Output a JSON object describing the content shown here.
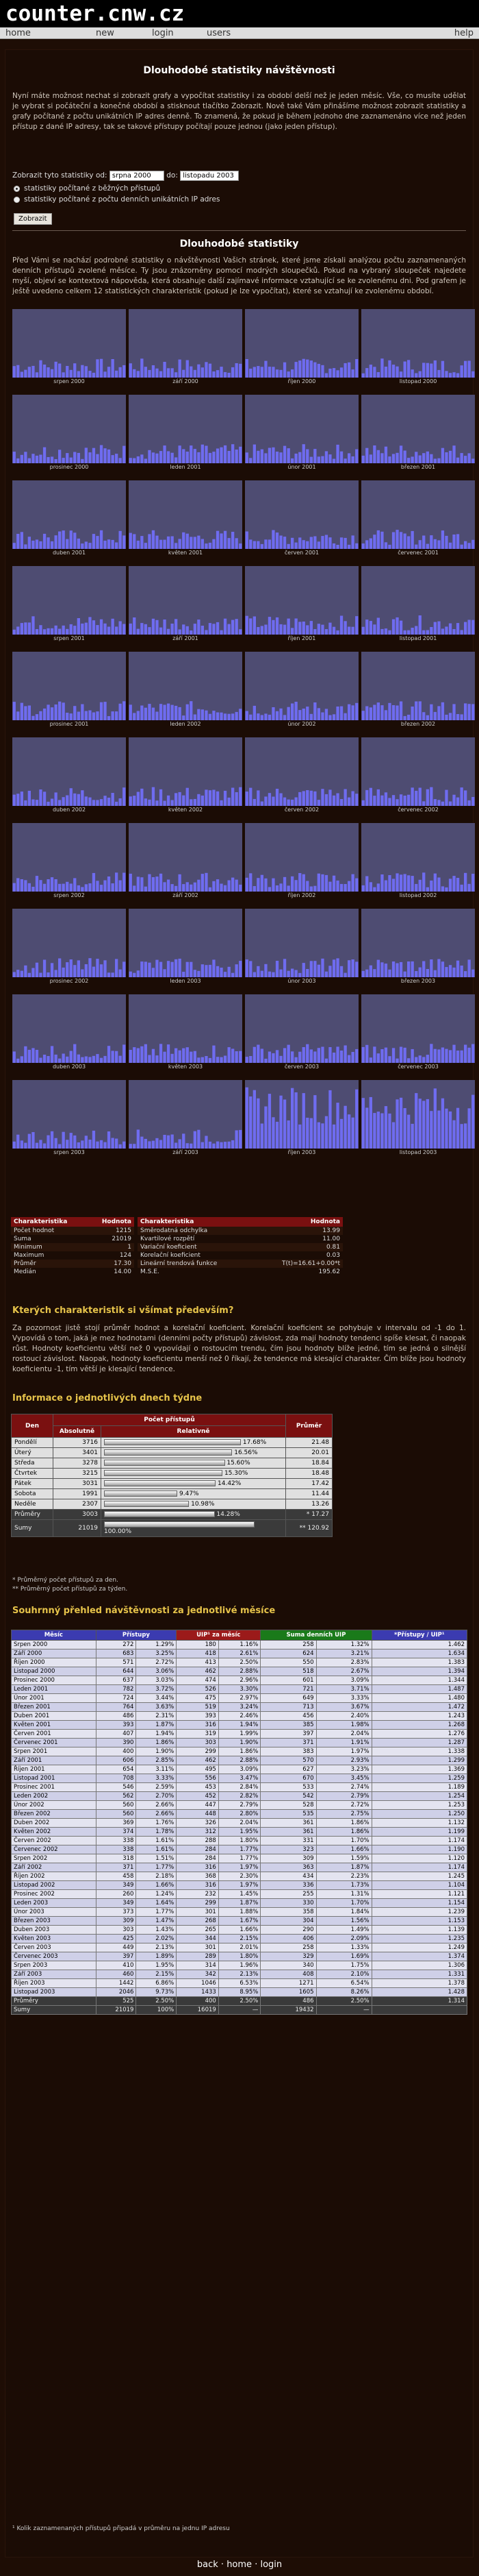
{
  "header": {
    "logo": "counter.cnw.cz"
  },
  "nav": {
    "home": "home",
    "new": "new",
    "login": "login",
    "users": "users",
    "help": "help"
  },
  "page": {
    "title": "Dlouhodobé statistiky návštěvnosti",
    "intro": "Nyní máte možnost nechat si zobrazit grafy a vypočítat statistiky i za období delší než je jeden měsíc. Vše, co musíte udělat je vybrat si počáteční a konečné období a stisknout tlačítko Zobrazit. Nově také Vám přinášíme možnost zobrazit statistiky a grafy počítané z počtu unikátních IP adres denně. To znamená, že pokud je během jednoho dne zaznamenáno více než jeden přístup z dané IP adresy, tak se takové přístupy počítají pouze jednou (jako jeden přístup).",
    "form_label_from": "Zobrazit tyto statistiky od:",
    "from_value": "srpna 2000",
    "form_label_to": "do:",
    "to_value": "listopadu 2003",
    "radio1": "statistiky počítané z běžných přístupů",
    "radio2": "statistiky počítané z počtu denních unikátních IP adres",
    "submit": "Zobrazit",
    "sub_title": "Dlouhodobé statistiky",
    "sub_intro": "Před Vámi se nachází podrobné statistiky o návštěvnosti Vašich stránek, které jsme získali analýzou počtu zaznamenaných denních přístupů zvolené měsíce. Ty jsou znázorněny pomocí modrých sloupečků. Pokud na vybraný sloupeček najedete myší, objeví se kontextová nápověda, která obsahuje další zajímavé informace vztahující se ke zvolenému dni. Pod grafem je ještě uvedeno celkem 12 statistických charakteristik (pokud je lze vypočítat), které se vztahují ke zvolenému období.",
    "sub_heading": "počítané z počtu denních přístupů pro ID: [puschpull]"
  },
  "charts": [
    {
      "label": "srpen 2000"
    },
    {
      "label": "září 2000"
    },
    {
      "label": "říjen 2000"
    },
    {
      "label": "listopad 2000"
    },
    {
      "label": "prosinec 2000"
    },
    {
      "label": "leden 2001"
    },
    {
      "label": "únor 2001"
    },
    {
      "label": "březen 2001"
    },
    {
      "label": "duben 2001"
    },
    {
      "label": "květen 2001"
    },
    {
      "label": "červen 2001"
    },
    {
      "label": "červenec 2001"
    },
    {
      "label": "srpen 2001"
    },
    {
      "label": "září 2001"
    },
    {
      "label": "říjen 2001"
    },
    {
      "label": "listopad 2001"
    },
    {
      "label": "prosinec 2001"
    },
    {
      "label": "leden 2002"
    },
    {
      "label": "únor 2002"
    },
    {
      "label": "březen 2002"
    },
    {
      "label": "duben 2002"
    },
    {
      "label": "květen 2002"
    },
    {
      "label": "červen 2002"
    },
    {
      "label": "červenec 2002"
    },
    {
      "label": "srpen 2002"
    },
    {
      "label": "září 2002"
    },
    {
      "label": "říjen 2002"
    },
    {
      "label": "listopad 2002"
    },
    {
      "label": "prosinec 2002"
    },
    {
      "label": "leden 2003"
    },
    {
      "label": "únor 2003"
    },
    {
      "label": "březen 2003"
    },
    {
      "label": "duben 2003"
    },
    {
      "label": "květen 2003"
    },
    {
      "label": "červen 2003"
    },
    {
      "label": "červenec 2003"
    },
    {
      "label": "srpen 2003"
    },
    {
      "label": "září 2003"
    },
    {
      "label": "říjen 2003"
    },
    {
      "label": "listopad 2003"
    }
  ],
  "stats": {
    "head_left": [
      "Charakteristika",
      "Hodnota"
    ],
    "head_right": [
      "Charakteristika",
      "Hodnota"
    ],
    "left": [
      [
        "Počet hodnot",
        "1215"
      ],
      [
        "Suma",
        "21019"
      ],
      [
        "Minimum",
        "1"
      ],
      [
        "Maximum",
        "124"
      ],
      [
        "Průměr",
        "17.30"
      ],
      [
        "Medián",
        "14.00"
      ]
    ],
    "right": [
      [
        "Směrodatná odchylka",
        "13.99"
      ],
      [
        "Kvartilové rozpětí",
        "11.00"
      ],
      [
        "Variační koeficient",
        "0.81"
      ],
      [
        "Korelační koeficient",
        "0.03"
      ],
      [
        "Lineární trendová funkce",
        "T(t)=16.61+0.00*t"
      ],
      [
        "M.S.E.",
        "195.62"
      ]
    ]
  },
  "notice": {
    "title": "Kterých charakteristik si všímat především?",
    "text": "Za pozornost jistě stojí průměr hodnot a korelační koeficient. Korelační koeficient se pohybuje v intervalu od -1 do 1. Vypovídá o tom, jaká je mez hodnotami (denními počty přístupů) závislost, zda mají hodnoty tendenci spíše klesat, či naopak růst. Hodnoty koeficientu větší než 0 vypovídají o rostoucím trendu, čím jsou hodnoty blíže jedné, tím se jedná o silnější rostoucí závislost. Naopak, hodnoty koeficientu menší než 0 říkají, že tendence má klesající charakter. Čím blíže jsou hodnoty koeficientu -1, tím větší je klesající tendence."
  },
  "days": {
    "title": "Informace o jednotlivých dnech týdne",
    "h_den": "Den",
    "h_pristupu": "Počet přístupů",
    "h_abs": "Absolutně",
    "h_rel": "Relativně",
    "h_avg": "Průměr",
    "rows": [
      [
        "Pondělí",
        "3716",
        "17.68%",
        "21.48"
      ],
      [
        "Úterý",
        "3401",
        "16.56%",
        "20.01"
      ],
      [
        "Středa",
        "3278",
        "15.60%",
        "18.84"
      ],
      [
        "Čtvrtek",
        "3215",
        "15.30%",
        "18.48"
      ],
      [
        "Pátek",
        "3031",
        "14.42%",
        "17.42"
      ],
      [
        "Sobota",
        "1991",
        "9.47%",
        "11.44"
      ],
      [
        "Neděle",
        "2307",
        "10.98%",
        "13.26"
      ],
      [
        "Průměry",
        "3003",
        "14.28%",
        "* 17.27"
      ],
      [
        "Sumy",
        "21019",
        "100.00%",
        "** 120.92"
      ]
    ],
    "pct": [
      17.68,
      16.56,
      15.6,
      15.3,
      14.42,
      9.47,
      10.98,
      14.28,
      100
    ],
    "fn1": "* Průměrný počet přístupů za den.",
    "fn2": "** Průměrný počet přístupů za týden."
  },
  "months": {
    "title": "Souhrnný přehled návštěvnosti za jednotlivé měsíce",
    "headers": [
      "Měsíc",
      "Přístupy",
      "UIP¹ za měsíc",
      "Suma denních UIP",
      "*Přístupy / UIP¹"
    ],
    "rows": [
      [
        "Srpen 2000",
        "272",
        "1.29%",
        "180",
        "1.16%",
        "258",
        "1.32%",
        "1.462"
      ],
      [
        "Září 2000",
        "683",
        "3.25%",
        "418",
        "2.61%",
        "624",
        "3.21%",
        "1.634"
      ],
      [
        "Říjen 2000",
        "571",
        "2.72%",
        "413",
        "2.50%",
        "550",
        "2.83%",
        "1.383"
      ],
      [
        "Listopad 2000",
        "644",
        "3.06%",
        "462",
        "2.88%",
        "518",
        "2.67%",
        "1.394"
      ],
      [
        "Prosinec 2000",
        "637",
        "3.03%",
        "474",
        "2.96%",
        "601",
        "3.09%",
        "1.344"
      ],
      [
        "Leden 2001",
        "782",
        "3.72%",
        "526",
        "3.30%",
        "721",
        "3.71%",
        "1.487"
      ],
      [
        "Únor 2001",
        "724",
        "3.44%",
        "475",
        "2.97%",
        "649",
        "3.33%",
        "1.480"
      ],
      [
        "Březen 2001",
        "764",
        "3.63%",
        "519",
        "3.24%",
        "713",
        "3.67%",
        "1.472"
      ],
      [
        "Duben 2001",
        "486",
        "2.31%",
        "393",
        "2.46%",
        "456",
        "2.40%",
        "1.243"
      ],
      [
        "Květen 2001",
        "393",
        "1.87%",
        "316",
        "1.94%",
        "385",
        "1.98%",
        "1.268"
      ],
      [
        "Červen 2001",
        "407",
        "1.94%",
        "319",
        "1.99%",
        "397",
        "2.04%",
        "1.276"
      ],
      [
        "Červenec 2001",
        "390",
        "1.86%",
        "303",
        "1.90%",
        "371",
        "1.91%",
        "1.287"
      ],
      [
        "Srpen 2001",
        "400",
        "1.90%",
        "299",
        "1.86%",
        "383",
        "1.97%",
        "1.338"
      ],
      [
        "Září 2001",
        "606",
        "2.85%",
        "462",
        "2.88%",
        "570",
        "2.93%",
        "1.299"
      ],
      [
        "Říjen 2001",
        "654",
        "3.11%",
        "495",
        "3.09%",
        "627",
        "3.23%",
        "1.369"
      ],
      [
        "Listopad 2001",
        "708",
        "3.33%",
        "556",
        "3.47%",
        "670",
        "3.45%",
        "1.259"
      ],
      [
        "Prosinec 2001",
        "546",
        "2.59%",
        "453",
        "2.84%",
        "533",
        "2.74%",
        "1.189"
      ],
      [
        "Leden 2002",
        "562",
        "2.70%",
        "452",
        "2.82%",
        "542",
        "2.79%",
        "1.254"
      ],
      [
        "Únor 2002",
        "560",
        "2.66%",
        "447",
        "2.79%",
        "528",
        "2.72%",
        "1.253"
      ],
      [
        "Březen 2002",
        "560",
        "2.66%",
        "448",
        "2.80%",
        "535",
        "2.75%",
        "1.250"
      ],
      [
        "Duben 2002",
        "369",
        "1.76%",
        "326",
        "2.04%",
        "361",
        "1.86%",
        "1.132"
      ],
      [
        "Květen 2002",
        "374",
        "1.78%",
        "312",
        "1.95%",
        "361",
        "1.86%",
        "1.199"
      ],
      [
        "Červen 2002",
        "338",
        "1.61%",
        "288",
        "1.80%",
        "331",
        "1.70%",
        "1.174"
      ],
      [
        "Červenec 2002",
        "338",
        "1.61%",
        "284",
        "1.77%",
        "323",
        "1.66%",
        "1.190"
      ],
      [
        "Srpen 2002",
        "318",
        "1.51%",
        "284",
        "1.77%",
        "309",
        "1.59%",
        "1.120"
      ],
      [
        "Září 2002",
        "371",
        "1.77%",
        "316",
        "1.97%",
        "363",
        "1.87%",
        "1.174"
      ],
      [
        "Říjen 2002",
        "458",
        "2.18%",
        "368",
        "2.30%",
        "434",
        "2.23%",
        "1.245"
      ],
      [
        "Listopad 2002",
        "349",
        "1.66%",
        "316",
        "1.97%",
        "336",
        "1.73%",
        "1.104"
      ],
      [
        "Prosinec 2002",
        "260",
        "1.24%",
        "232",
        "1.45%",
        "255",
        "1.31%",
        "1.121"
      ],
      [
        "Leden 2003",
        "349",
        "1.64%",
        "299",
        "1.87%",
        "330",
        "1.70%",
        "1.154"
      ],
      [
        "Únor 2003",
        "373",
        "1.77%",
        "301",
        "1.88%",
        "358",
        "1.84%",
        "1.239"
      ],
      [
        "Březen 2003",
        "309",
        "1.47%",
        "268",
        "1.67%",
        "304",
        "1.56%",
        "1.153"
      ],
      [
        "Duben 2003",
        "303",
        "1.43%",
        "265",
        "1.66%",
        "290",
        "1.49%",
        "1.139"
      ],
      [
        "Květen 2003",
        "425",
        "2.02%",
        "344",
        "2.15%",
        "406",
        "2.09%",
        "1.235"
      ],
      [
        "Červen 2003",
        "449",
        "2.13%",
        "301",
        "2.01%",
        "258",
        "1.33%",
        "1.249"
      ],
      [
        "Červenec 2003",
        "397",
        "1.89%",
        "289",
        "1.80%",
        "329",
        "1.69%",
        "1.374"
      ],
      [
        "Srpen 2003",
        "410",
        "1.95%",
        "314",
        "1.96%",
        "340",
        "1.75%",
        "1.306"
      ],
      [
        "Září 2003",
        "460",
        "2.15%",
        "342",
        "2.13%",
        "408",
        "2.10%",
        "1.331"
      ],
      [
        "Říjen 2003",
        "1442",
        "6.86%",
        "1046",
        "6.53%",
        "1271",
        "6.54%",
        "1.378"
      ],
      [
        "Listopad 2003",
        "2046",
        "9.73%",
        "1433",
        "8.95%",
        "1605",
        "8.26%",
        "1.428"
      ],
      [
        "Průměry",
        "525",
        "2.50%",
        "400",
        "2.50%",
        "486",
        "2.50%",
        "1.314"
      ],
      [
        "Sumy",
        "21019",
        "100%",
        "16019",
        "—",
        "19432",
        "—",
        ""
      ]
    ],
    "footnote": "¹ Kolik zaznamenaných přístupů připadá v průměru na jednu IP adresu"
  },
  "footer": {
    "back": "back",
    "home": "home",
    "login": "login"
  }
}
